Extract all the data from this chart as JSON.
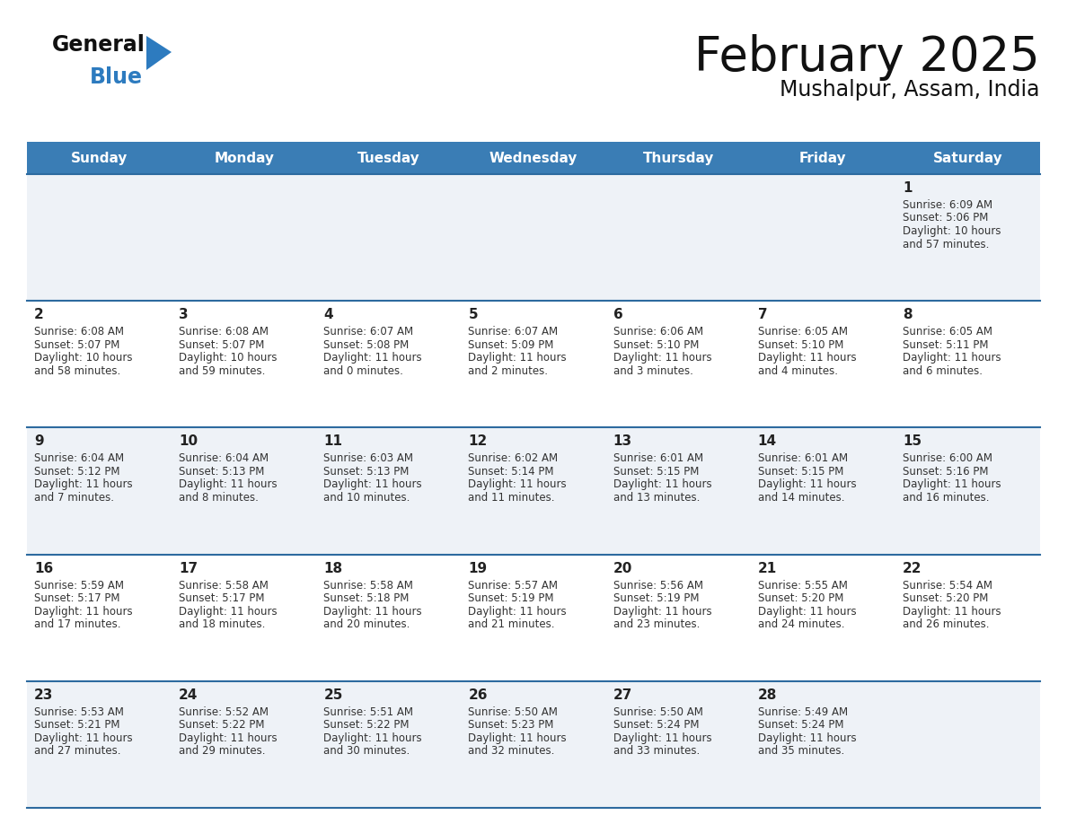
{
  "title": "February 2025",
  "subtitle": "Mushalpur, Assam, India",
  "days_of_week": [
    "Sunday",
    "Monday",
    "Tuesday",
    "Wednesday",
    "Thursday",
    "Friday",
    "Saturday"
  ],
  "header_bg_color": "#3a7db5",
  "header_text_color": "#ffffff",
  "row_bg_even": "#eef2f7",
  "row_bg_odd": "#ffffff",
  "border_color": "#2d6a9f",
  "day_num_color": "#222222",
  "detail_color": "#333333",
  "title_color": "#111111",
  "subtitle_color": "#111111",
  "logo_general_color": "#111111",
  "logo_blue_color": "#2d7bbf",
  "logo_triangle_color": "#2d7bbf",
  "calendar_data": [
    [
      null,
      null,
      null,
      null,
      null,
      null,
      {
        "day": 1,
        "sunrise": "6:09 AM",
        "sunset": "5:06 PM",
        "daylight": "10 hours and 57 minutes."
      }
    ],
    [
      {
        "day": 2,
        "sunrise": "6:08 AM",
        "sunset": "5:07 PM",
        "daylight": "10 hours and 58 minutes."
      },
      {
        "day": 3,
        "sunrise": "6:08 AM",
        "sunset": "5:07 PM",
        "daylight": "10 hours and 59 minutes."
      },
      {
        "day": 4,
        "sunrise": "6:07 AM",
        "sunset": "5:08 PM",
        "daylight": "11 hours and 0 minutes."
      },
      {
        "day": 5,
        "sunrise": "6:07 AM",
        "sunset": "5:09 PM",
        "daylight": "11 hours and 2 minutes."
      },
      {
        "day": 6,
        "sunrise": "6:06 AM",
        "sunset": "5:10 PM",
        "daylight": "11 hours and 3 minutes."
      },
      {
        "day": 7,
        "sunrise": "6:05 AM",
        "sunset": "5:10 PM",
        "daylight": "11 hours and 4 minutes."
      },
      {
        "day": 8,
        "sunrise": "6:05 AM",
        "sunset": "5:11 PM",
        "daylight": "11 hours and 6 minutes."
      }
    ],
    [
      {
        "day": 9,
        "sunrise": "6:04 AM",
        "sunset": "5:12 PM",
        "daylight": "11 hours and 7 minutes."
      },
      {
        "day": 10,
        "sunrise": "6:04 AM",
        "sunset": "5:13 PM",
        "daylight": "11 hours and 8 minutes."
      },
      {
        "day": 11,
        "sunrise": "6:03 AM",
        "sunset": "5:13 PM",
        "daylight": "11 hours and 10 minutes."
      },
      {
        "day": 12,
        "sunrise": "6:02 AM",
        "sunset": "5:14 PM",
        "daylight": "11 hours and 11 minutes."
      },
      {
        "day": 13,
        "sunrise": "6:01 AM",
        "sunset": "5:15 PM",
        "daylight": "11 hours and 13 minutes."
      },
      {
        "day": 14,
        "sunrise": "6:01 AM",
        "sunset": "5:15 PM",
        "daylight": "11 hours and 14 minutes."
      },
      {
        "day": 15,
        "sunrise": "6:00 AM",
        "sunset": "5:16 PM",
        "daylight": "11 hours and 16 minutes."
      }
    ],
    [
      {
        "day": 16,
        "sunrise": "5:59 AM",
        "sunset": "5:17 PM",
        "daylight": "11 hours and 17 minutes."
      },
      {
        "day": 17,
        "sunrise": "5:58 AM",
        "sunset": "5:17 PM",
        "daylight": "11 hours and 18 minutes."
      },
      {
        "day": 18,
        "sunrise": "5:58 AM",
        "sunset": "5:18 PM",
        "daylight": "11 hours and 20 minutes."
      },
      {
        "day": 19,
        "sunrise": "5:57 AM",
        "sunset": "5:19 PM",
        "daylight": "11 hours and 21 minutes."
      },
      {
        "day": 20,
        "sunrise": "5:56 AM",
        "sunset": "5:19 PM",
        "daylight": "11 hours and 23 minutes."
      },
      {
        "day": 21,
        "sunrise": "5:55 AM",
        "sunset": "5:20 PM",
        "daylight": "11 hours and 24 minutes."
      },
      {
        "day": 22,
        "sunrise": "5:54 AM",
        "sunset": "5:20 PM",
        "daylight": "11 hours and 26 minutes."
      }
    ],
    [
      {
        "day": 23,
        "sunrise": "5:53 AM",
        "sunset": "5:21 PM",
        "daylight": "11 hours and 27 minutes."
      },
      {
        "day": 24,
        "sunrise": "5:52 AM",
        "sunset": "5:22 PM",
        "daylight": "11 hours and 29 minutes."
      },
      {
        "day": 25,
        "sunrise": "5:51 AM",
        "sunset": "5:22 PM",
        "daylight": "11 hours and 30 minutes."
      },
      {
        "day": 26,
        "sunrise": "5:50 AM",
        "sunset": "5:23 PM",
        "daylight": "11 hours and 32 minutes."
      },
      {
        "day": 27,
        "sunrise": "5:50 AM",
        "sunset": "5:24 PM",
        "daylight": "11 hours and 33 minutes."
      },
      {
        "day": 28,
        "sunrise": "5:49 AM",
        "sunset": "5:24 PM",
        "daylight": "11 hours and 35 minutes."
      },
      null
    ]
  ]
}
